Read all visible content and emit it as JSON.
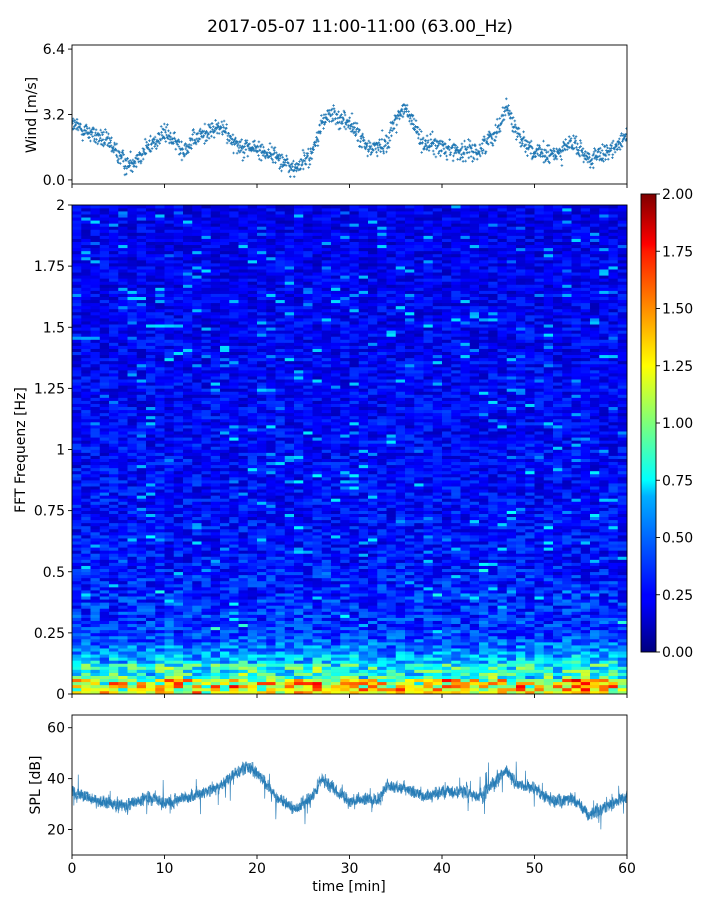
{
  "title": "2017-05-07 11:00-11:00 (63.00_Hz)",
  "chart_data": [
    {
      "type": "scatter",
      "name": "wind",
      "ylabel": "Wind [m/s]",
      "ylim": [
        -0.2,
        6.6
      ],
      "yticks": [
        "0.0",
        "3.2",
        "6.4"
      ],
      "xlim": [
        0,
        60
      ],
      "color": "#1f77b4",
      "marker": "+",
      "envelope": {
        "x": [
          0,
          2,
          4,
          6,
          8,
          10,
          12,
          14,
          16,
          18,
          20,
          22,
          24,
          26,
          27,
          28,
          30,
          32,
          34,
          35,
          36,
          38,
          40,
          42,
          44,
          46,
          47,
          48,
          50,
          52,
          54,
          56,
          58,
          60
        ],
        "y": [
          2.7,
          2.3,
          1.8,
          0.7,
          1.5,
          2.3,
          1.5,
          2.2,
          2.6,
          1.7,
          1.5,
          1.2,
          0.5,
          1.3,
          2.8,
          3.2,
          2.8,
          1.5,
          1.8,
          3.0,
          3.5,
          1.8,
          1.6,
          1.4,
          1.4,
          2.5,
          3.6,
          2.4,
          1.3,
          1.2,
          1.8,
          1.0,
          1.3,
          2.3
        ]
      }
    },
    {
      "type": "heatmap",
      "name": "spectrogram",
      "ylabel": "FFT Frequenz [Hz]",
      "ylim": [
        0,
        2
      ],
      "yticks": [
        "0",
        "0.25",
        "0.5",
        "0.75",
        "1",
        "1.25",
        "1.5",
        "1.75",
        "2"
      ],
      "xlim": [
        0,
        60
      ],
      "colormap": "jet",
      "colorbar": {
        "min": 0,
        "max": 2,
        "ticks": [
          "0.00",
          "0.25",
          "0.50",
          "0.75",
          "1.00",
          "1.25",
          "1.50",
          "1.75",
          "2.00"
        ]
      }
    },
    {
      "type": "line",
      "name": "spl",
      "ylabel": "SPL [dB]",
      "xlabel": "time [min]",
      "ylim": [
        10,
        65
      ],
      "yticks": [
        "20",
        "40",
        "60"
      ],
      "xlim": [
        0,
        60
      ],
      "xticks": [
        "0",
        "10",
        "20",
        "30",
        "40",
        "50",
        "60"
      ],
      "color": "#1f77b4",
      "envelope": {
        "x": [
          0,
          3,
          6,
          8,
          10,
          13,
          16,
          18,
          19,
          20,
          22,
          24,
          26,
          27,
          28,
          30,
          32,
          33,
          34,
          36,
          38,
          40,
          42,
          44,
          45,
          46,
          47,
          48,
          50,
          52,
          54,
          56,
          58,
          60
        ],
        "y": [
          35,
          31,
          29,
          33,
          30,
          33,
          37,
          43,
          45,
          42,
          33,
          28,
          33,
          40,
          37,
          31,
          32,
          31,
          37,
          36,
          33,
          35,
          35,
          33,
          36,
          40,
          43,
          38,
          36,
          31,
          32,
          26,
          29,
          33
        ]
      }
    }
  ]
}
